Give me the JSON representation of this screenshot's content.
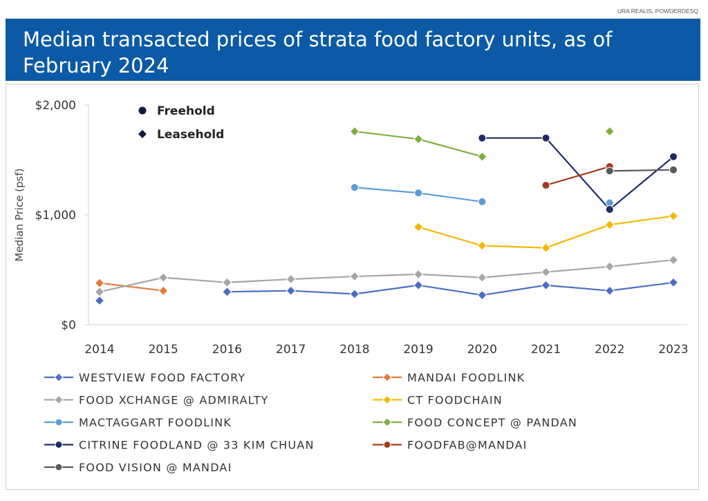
{
  "source": "URA REALIS, POWDERDESQ",
  "title": "Median transacted prices of strata food factory units, as of February 2024",
  "chart_data": {
    "type": "line",
    "ylabel": "Median Price (psf)",
    "xlabel": "",
    "ylim": [
      0,
      2000
    ],
    "y_ticks": [
      {
        "value": 0,
        "label": "$0"
      },
      {
        "value": 1000,
        "label": "$1,000"
      },
      {
        "value": 2000,
        "label": "$2,000"
      }
    ],
    "categories": [
      "2014",
      "2015",
      "2016",
      "2017",
      "2018",
      "2019",
      "2020",
      "2021",
      "2022",
      "2023"
    ],
    "grid": false,
    "annotations": {
      "freehold": "Freehold",
      "leasehold": "Leasehold"
    },
    "series": [
      {
        "name": "WESTVIEW FOOD FACTORY",
        "color": "#4a6fc4",
        "marker": "diamond",
        "values": [
          220,
          null,
          300,
          310,
          280,
          360,
          270,
          360,
          310,
          385
        ]
      },
      {
        "name": "MANDAI FOODLINK",
        "color": "#e8793a",
        "marker": "diamond",
        "values": [
          380,
          310,
          null,
          null,
          null,
          null,
          null,
          null,
          null,
          null
        ]
      },
      {
        "name": "FOOD XCHANGE @ ADMIRALTY",
        "color": "#a6a6a6",
        "marker": "diamond",
        "values": [
          300,
          430,
          385,
          415,
          440,
          460,
          430,
          480,
          530,
          590
        ]
      },
      {
        "name": "CT FOODCHAIN",
        "color": "#f5b800",
        "marker": "diamond",
        "values": [
          null,
          null,
          null,
          null,
          null,
          890,
          720,
          700,
          910,
          990
        ]
      },
      {
        "name": "MACTAGGART FOODLINK",
        "color": "#5b9bd5",
        "marker": "circle",
        "values": [
          null,
          null,
          null,
          null,
          1250,
          1200,
          1120,
          null,
          1110,
          null
        ]
      },
      {
        "name": "FOOD CONCEPT @ PANDAN",
        "color": "#7fae3f",
        "marker": "diamond",
        "values": [
          null,
          null,
          null,
          null,
          1760,
          1690,
          1530,
          null,
          1760,
          null
        ]
      },
      {
        "name": "CITRINE FOODLAND @ 33 KIM CHUAN",
        "color": "#1f2a66",
        "marker": "circle",
        "values": [
          null,
          null,
          null,
          null,
          null,
          null,
          1700,
          1700,
          1050,
          1530
        ]
      },
      {
        "name": "FOODFAB@MANDAI",
        "color": "#a23b1a",
        "marker": "circle",
        "values": [
          null,
          null,
          null,
          null,
          null,
          null,
          null,
          1270,
          1440,
          null
        ]
      },
      {
        "name": "FOOD VISION @ MANDAI",
        "color": "#595959",
        "marker": "circle",
        "values": [
          null,
          null,
          null,
          null,
          null,
          null,
          null,
          null,
          1400,
          1410
        ]
      }
    ]
  }
}
